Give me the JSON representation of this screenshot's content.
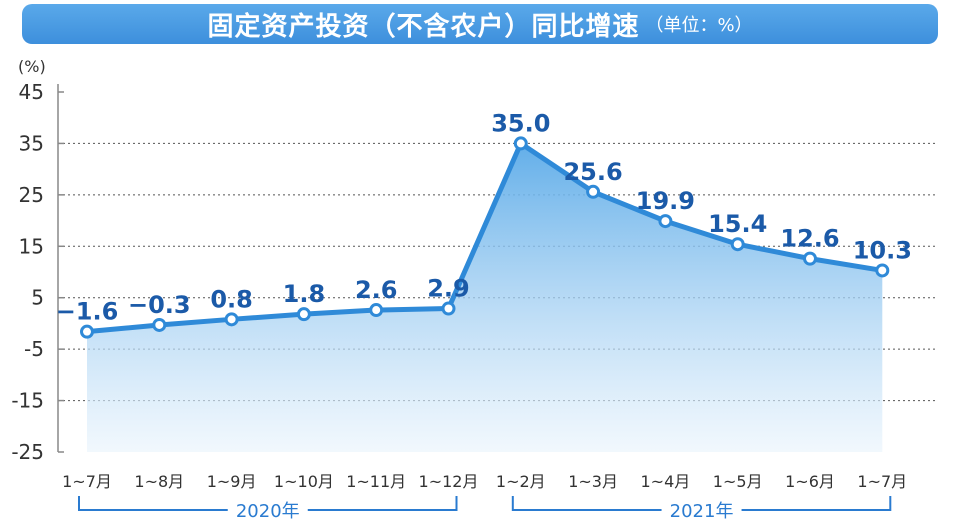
{
  "title": {
    "main": "固定资产投资（不含农户）同比增速",
    "unit": "（单位：%）"
  },
  "colors": {
    "title_bar": "#4a9be3",
    "line": "#2f8ad8",
    "area_top": "#5aaae8",
    "area_bottom": "#e8f3fc",
    "data_label": "#1b5aa8",
    "group_bracket": "#2a7bd0"
  },
  "chart_data": {
    "type": "area",
    "title": "固定资产投资（不含农户）同比增速",
    "ylabel": "(%)",
    "ylim": [
      -25,
      45
    ],
    "yticks": [
      45,
      35,
      25,
      15,
      5,
      -5,
      -15,
      -25
    ],
    "grid": "dashed horizontal at -5, 5, 15, 25, 35",
    "categories": [
      "1~7月",
      "1~8月",
      "1~9月",
      "1~10月",
      "1~11月",
      "1~12月",
      "1~2月",
      "1~3月",
      "1~4月",
      "1~5月",
      "1~6月",
      "1~7月"
    ],
    "values": [
      -1.6,
      -0.3,
      0.8,
      1.8,
      2.6,
      2.9,
      35.0,
      25.6,
      19.9,
      15.4,
      12.6,
      10.3
    ],
    "data_labels": [
      "−1.6",
      "−0.3",
      "0.8",
      "1.8",
      "2.6",
      "2.9",
      "35.0",
      "25.6",
      "19.9",
      "15.4",
      "12.6",
      "10.3"
    ],
    "groups": [
      {
        "label": "2020年",
        "from": 0,
        "to": 5
      },
      {
        "label": "2021年",
        "from": 6,
        "to": 11
      }
    ]
  }
}
